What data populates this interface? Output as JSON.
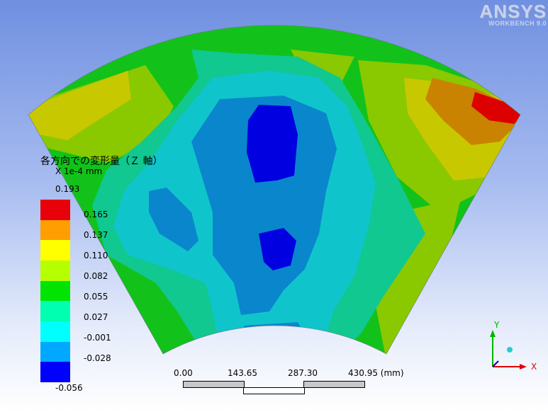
{
  "logo": {
    "brand": "ANSYS",
    "sub": "WORKBENCH 9.0"
  },
  "legend": {
    "title": "各方向での変形量（Ｚ 軸）",
    "unit": "X 1e-4 mm",
    "max": "0.193",
    "min": "-0.056",
    "labels": [
      "0.165",
      "0.137",
      "0.110",
      "0.082",
      "0.055",
      "0.027",
      "-0.001",
      "-0.028"
    ],
    "colors": [
      "#e8000a",
      "#ff9e00",
      "#ffff00",
      "#b6ff00",
      "#00e400",
      "#00ffb0",
      "#00ffff",
      "#00a8ff",
      "#0000ff"
    ]
  },
  "contour_colors": {
    "c0": "#0000e0",
    "c1": "#0a86cc",
    "c2": "#10c4cc",
    "c3": "#10c890",
    "c4": "#12c21a",
    "c5": "#8ac800",
    "c6": "#c8c800",
    "c7": "#c98300",
    "c8": "#dc0000"
  },
  "scale": {
    "labels": [
      "0.00",
      "143.65",
      "287.30",
      "430.95 (mm)"
    ]
  },
  "triad": {
    "x": "X",
    "y": "Y"
  }
}
